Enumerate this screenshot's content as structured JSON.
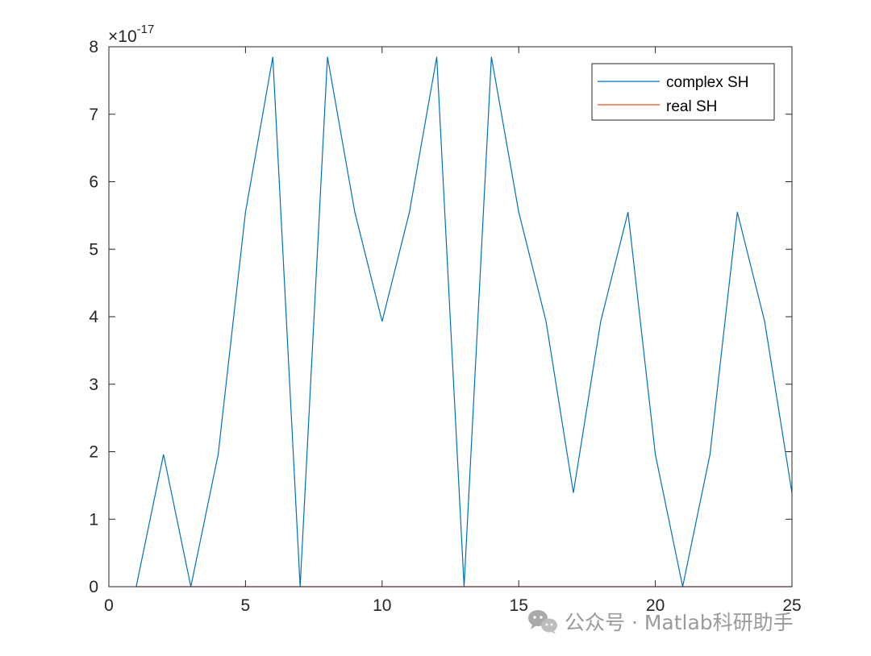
{
  "chart_data": {
    "type": "line",
    "xlim": [
      0,
      25
    ],
    "ylim": [
      0,
      8
    ],
    "x_ticks": [
      "0",
      "5",
      "10",
      "15",
      "20",
      "25"
    ],
    "y_ticks": [
      "0",
      "1",
      "2",
      "3",
      "4",
      "5",
      "6",
      "7",
      "8"
    ],
    "y_exponent_base": "×10",
    "y_exponent_power": "-17",
    "grid": false,
    "legend_position": "top-right",
    "series": [
      {
        "name": "complex SH",
        "color": "#0072BD",
        "x": [
          1,
          2,
          3,
          4,
          5,
          6,
          7,
          8,
          9,
          10,
          11,
          12,
          13,
          14,
          15,
          16,
          17,
          18,
          19,
          20,
          21,
          22,
          23,
          24,
          25
        ],
        "y": [
          0,
          1.96,
          0,
          1.96,
          5.55,
          7.85,
          0,
          7.85,
          5.55,
          3.93,
          5.55,
          7.85,
          0,
          7.85,
          5.55,
          3.93,
          1.39,
          3.93,
          5.55,
          1.96,
          0,
          1.96,
          5.55,
          3.93,
          1.39
        ]
      },
      {
        "name": "real SH",
        "color": "#D95319",
        "x": [
          1,
          2,
          3,
          4,
          5,
          6,
          7,
          8,
          9,
          10,
          11,
          12,
          13,
          14,
          15,
          16,
          17,
          18,
          19,
          20,
          21,
          22,
          23,
          24,
          25
        ],
        "y": [
          0,
          0,
          0,
          0,
          0,
          0,
          0,
          0,
          0,
          0,
          0,
          0,
          0,
          0,
          0,
          0,
          0,
          0,
          0,
          0,
          0,
          0,
          0,
          0,
          0
        ]
      }
    ]
  },
  "watermark": {
    "icon": "wechat-icon",
    "text": "公众号 · Matlab科研助手"
  }
}
